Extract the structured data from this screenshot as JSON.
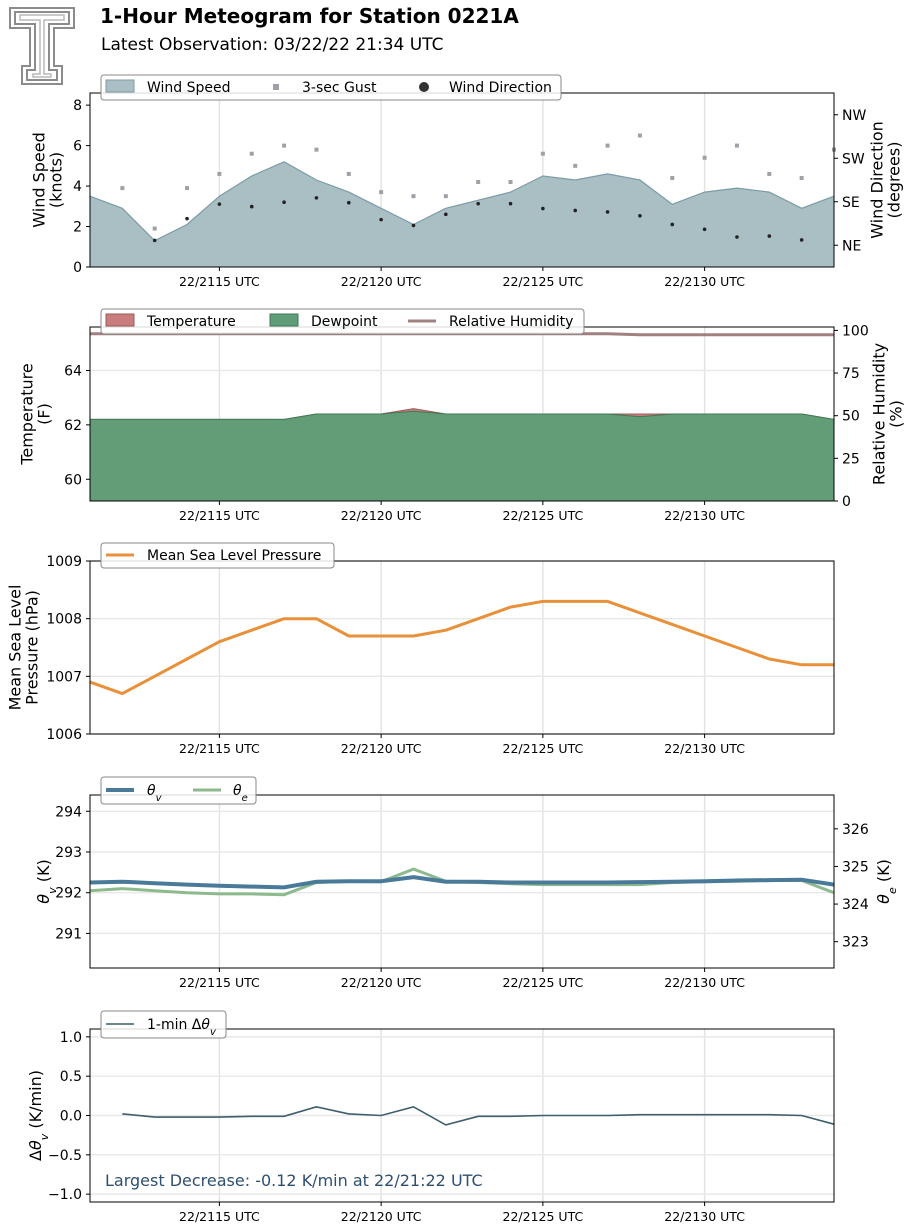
{
  "header": {
    "title": "1-Hour Meteogram for Station 0221A",
    "subtitle": "Latest Observation: 03/22/22 21:34 UTC"
  },
  "colors": {
    "wind_fill": "#a9bfc4",
    "wind_line": "#7c9ba5",
    "gust": "#a0a0a8",
    "direction": "#222222",
    "temperature": "#c97c7c",
    "dewpoint": "#5f9e78",
    "rh": "#a08080",
    "pressure": "#e8903a",
    "theta_v": "#4a7a9a",
    "theta_e": "#8dba8d",
    "dtheta": "#3d5f6b",
    "annotation": "#2f4f6f"
  },
  "x_tick_labels": [
    "22/2115 UTC",
    "22/2120 UTC",
    "22/2125 UTC",
    "22/2130 UTC"
  ],
  "chart_data": [
    {
      "id": "wind",
      "type": "area",
      "x_start": "22/2111 UTC",
      "x_end": "22/2134 UTC",
      "ylabel": "Wind Speed (knots)",
      "ylabel_lines": [
        "Wind Speed",
        "(knots)"
      ],
      "ylim": [
        0,
        8.6
      ],
      "yticks": [
        0,
        2,
        4,
        6,
        8
      ],
      "y2label_lines": [
        "Wind Direction",
        "(degrees)"
      ],
      "y2ticks": [
        "NE",
        "SE",
        "SW",
        "NW"
      ],
      "y2lim": [
        0,
        360
      ],
      "y2tick_values": [
        45,
        135,
        225,
        315
      ],
      "legend": [
        "Wind Speed",
        "3-sec Gust",
        "Wind Direction"
      ],
      "series": [
        {
          "name": "Wind Speed",
          "values": [
            3.5,
            2.9,
            1.3,
            2.1,
            3.5,
            4.5,
            5.2,
            4.3,
            3.7,
            2.9,
            2.1,
            2.9,
            3.3,
            3.7,
            4.5,
            4.3,
            4.6,
            4.3,
            3.1,
            3.7,
            3.9,
            3.7,
            2.9,
            3.5
          ]
        },
        {
          "name": "3-sec Gust",
          "values": [
            null,
            3.9,
            1.9,
            3.9,
            4.6,
            5.6,
            6.0,
            5.8,
            4.6,
            3.7,
            3.5,
            3.5,
            4.2,
            4.2,
            5.6,
            5.0,
            6.0,
            6.5,
            4.4,
            5.4,
            6.0,
            4.6,
            4.4,
            5.8
          ]
        },
        {
          "name": "Wind Direction",
          "values": [
            null,
            null,
            55,
            100,
            130,
            125,
            134,
            143,
            133,
            98,
            86,
            109,
            131,
            131,
            121,
            117,
            114,
            106,
            88,
            78,
            62,
            64,
            56,
            null
          ]
        }
      ]
    },
    {
      "id": "temperature",
      "type": "area",
      "x_start": "22/2111 UTC",
      "x_end": "22/2134 UTC",
      "ylabel": "Temperature (F)",
      "ylabel_lines": [
        "Temperature",
        "(F)"
      ],
      "ylim": [
        59.2,
        65.6
      ],
      "yticks": [
        60,
        62,
        64
      ],
      "y2label_lines": [
        "Relative Humidity",
        "(%)"
      ],
      "y2lim": [
        0,
        102
      ],
      "y2ticks": [
        0,
        25,
        50,
        75,
        100
      ],
      "legend": [
        "Temperature",
        "Dewpoint",
        "Relative Humidity"
      ],
      "series": [
        {
          "name": "Temperature",
          "values": [
            62.2,
            62.2,
            62.2,
            62.2,
            62.2,
            62.2,
            62.2,
            62.4,
            62.4,
            62.4,
            62.6,
            62.4,
            62.4,
            62.4,
            62.4,
            62.4,
            62.4,
            62.4,
            62.4,
            62.4,
            62.4,
            62.4,
            62.4,
            62.2
          ]
        },
        {
          "name": "Dewpoint",
          "values": [
            62.2,
            62.2,
            62.2,
            62.2,
            62.2,
            62.2,
            62.2,
            62.4,
            62.4,
            62.4,
            62.5,
            62.4,
            62.4,
            62.4,
            62.4,
            62.4,
            62.4,
            62.3,
            62.4,
            62.4,
            62.4,
            62.4,
            62.4,
            62.2
          ]
        },
        {
          "name": "Relative Humidity",
          "values": [
            98,
            98,
            98,
            98,
            98,
            98,
            98,
            98,
            98,
            98,
            98,
            98,
            98,
            98,
            98,
            98,
            98,
            97.5,
            97.5,
            97.5,
            97.5,
            97.5,
            97.5,
            97.5
          ]
        }
      ]
    },
    {
      "id": "pressure",
      "type": "line",
      "x_start": "22/2111 UTC",
      "x_end": "22/2134 UTC",
      "ylabel": "Mean Sea Level Pressure (hPa)",
      "ylabel_lines": [
        "Mean Sea Level",
        "Pressure (hPa)"
      ],
      "ylim": [
        1006,
        1009
      ],
      "yticks": [
        1006,
        1007,
        1008,
        1009
      ],
      "legend": [
        "Mean Sea Level Pressure"
      ],
      "series": [
        {
          "name": "Mean Sea Level Pressure",
          "values": [
            1006.9,
            1006.7,
            1007.0,
            1007.3,
            1007.6,
            1007.8,
            1008.0,
            1008.0,
            1007.7,
            1007.7,
            1007.7,
            1007.8,
            1008.0,
            1008.2,
            1008.3,
            1008.3,
            1008.3,
            1008.1,
            1007.9,
            1007.7,
            1007.5,
            1007.3,
            1007.2,
            1007.2
          ]
        }
      ]
    },
    {
      "id": "theta",
      "type": "line",
      "x_start": "22/2111 UTC",
      "x_end": "22/2134 UTC",
      "ylabel": "θv (K)",
      "ylim": [
        290.15,
        294.4
      ],
      "yticks": [
        291,
        292,
        293,
        294
      ],
      "y2label": "θe (K)",
      "y2lim": [
        322.3,
        326.9
      ],
      "y2ticks": [
        323,
        324,
        325,
        326
      ],
      "legend": [
        "θv",
        "θe"
      ],
      "series": [
        {
          "name": "θv",
          "axis": "left",
          "values": [
            292.25,
            292.27,
            292.23,
            292.2,
            292.17,
            292.15,
            292.13,
            292.27,
            292.28,
            292.28,
            292.38,
            292.27,
            292.27,
            292.25,
            292.25,
            292.25,
            292.25,
            292.26,
            292.27,
            292.28,
            292.3,
            292.31,
            292.32,
            292.2
          ]
        },
        {
          "name": "θe",
          "axis": "left",
          "values": [
            292.05,
            292.1,
            292.05,
            292.0,
            291.97,
            291.97,
            291.95,
            292.25,
            292.28,
            292.27,
            292.58,
            292.28,
            292.25,
            292.22,
            292.2,
            292.2,
            292.2,
            292.2,
            292.25,
            292.27,
            292.28,
            292.3,
            292.3,
            292.0
          ]
        }
      ]
    },
    {
      "id": "dtheta",
      "type": "line",
      "x_start": "22/2111 UTC",
      "x_end": "22/2134 UTC",
      "ylabel": "Δθv (K/min)",
      "ylim": [
        -1.1,
        1.1
      ],
      "yticks": [
        -1.0,
        -0.5,
        0.0,
        0.5,
        1.0
      ],
      "ytick_labels": [
        "−1.0",
        "−0.5",
        "0.0",
        "0.5",
        "1.0"
      ],
      "legend": [
        "1-min Δθv"
      ],
      "annotation": "Largest Decrease: -0.12 K/min at 22/21:22 UTC",
      "series": [
        {
          "name": "1-min Δθv",
          "values": [
            null,
            0.02,
            -0.02,
            -0.02,
            -0.02,
            -0.01,
            -0.01,
            0.11,
            0.02,
            0.0,
            0.11,
            -0.12,
            -0.01,
            -0.01,
            0.0,
            0.0,
            0.0,
            0.01,
            0.01,
            0.01,
            0.01,
            0.01,
            0.0,
            -0.11
          ]
        }
      ]
    }
  ]
}
